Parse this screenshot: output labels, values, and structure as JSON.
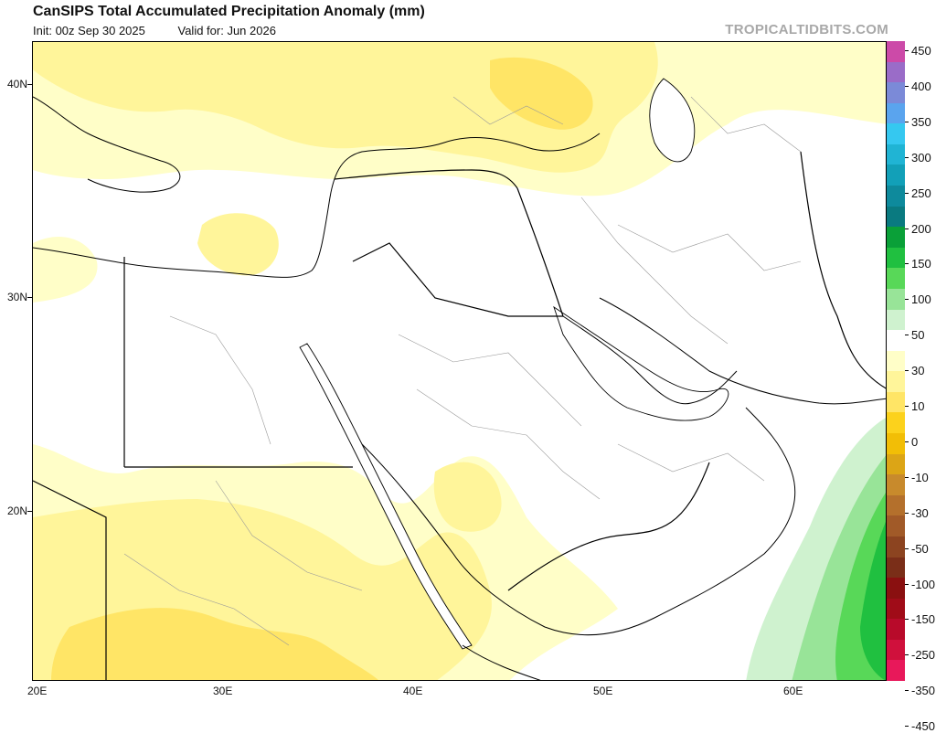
{
  "header": {
    "title": "CanSIPS Total Accumulated Precipitation Anomaly (mm)",
    "init": "Init: 00z Sep 30 2025",
    "valid": "Valid for: Jun 2026",
    "brand": "TROPICALTIDBITS.COM"
  },
  "axes": {
    "lat_labels": [
      "40N",
      "30N",
      "20N"
    ],
    "lon_labels": [
      "20E",
      "30E",
      "40E",
      "50E",
      "60E"
    ]
  },
  "colorbar": {
    "labels": [
      "450",
      "400",
      "350",
      "300",
      "250",
      "200",
      "150",
      "100",
      "50",
      "30",
      "10",
      "0",
      "-10",
      "-30",
      "-50",
      "-100",
      "-150",
      "-250",
      "-350",
      "-450"
    ],
    "colors": [
      "#cc4aa8",
      "#9a6cc8",
      "#7b8ad8",
      "#5aa4ee",
      "#35c8f0",
      "#20b4d4",
      "#12a0b8",
      "#0e8a9c",
      "#0a7a80",
      "#0aa038",
      "#20c040",
      "#58d858",
      "#98e498",
      "#cff2cf",
      "#ffffff",
      "#fffec8",
      "#fff59a",
      "#ffe566",
      "#fcd21c",
      "#f2be06",
      "#dca516",
      "#c88a2c",
      "#b4702c",
      "#a15a28",
      "#8c4420",
      "#7a2e18",
      "#8a1010",
      "#a00c18",
      "#b80a2a",
      "#d0103c",
      "#e8185a"
    ]
  },
  "map": {
    "region": "Middle East / Northeast Africa",
    "anomaly_colors": {
      "light_yellow": "#fffec8",
      "yellow": "#fff59a",
      "dark_yellow": "#ffe566",
      "light_green": "#cff2cf",
      "green": "#98e498",
      "mid_green": "#58d858",
      "dark_green": "#20c040"
    }
  }
}
